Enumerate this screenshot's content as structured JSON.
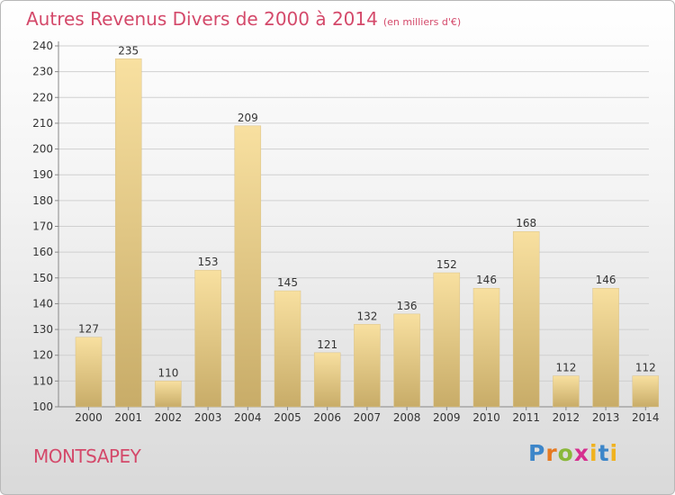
{
  "title": "Autres Revenus Divers de 2000 à 2014",
  "title_unit": "(en milliers d'€)",
  "place_name": "MONTSAPEY",
  "logo_text": "Proxiti",
  "colors": {
    "title": "#d4496a",
    "bar_light": "#f8e0a0",
    "bar_dark": "#c8ac68"
  },
  "chart_data": {
    "type": "bar",
    "title": "Autres Revenus Divers de 2000 à 2014",
    "categories": [
      "2000",
      "2001",
      "2002",
      "2003",
      "2004",
      "2005",
      "2006",
      "2007",
      "2008",
      "2009",
      "2010",
      "2011",
      "2012",
      "2013",
      "2014"
    ],
    "values": [
      127,
      235,
      110,
      153,
      209,
      145,
      121,
      132,
      136,
      152,
      146,
      168,
      112,
      146,
      112
    ],
    "ylim": [
      100,
      240
    ],
    "yticks": [
      100,
      110,
      120,
      130,
      140,
      150,
      160,
      170,
      180,
      190,
      200,
      210,
      220,
      230,
      240
    ],
    "grid": true,
    "xlabel": "",
    "ylabel": ""
  }
}
